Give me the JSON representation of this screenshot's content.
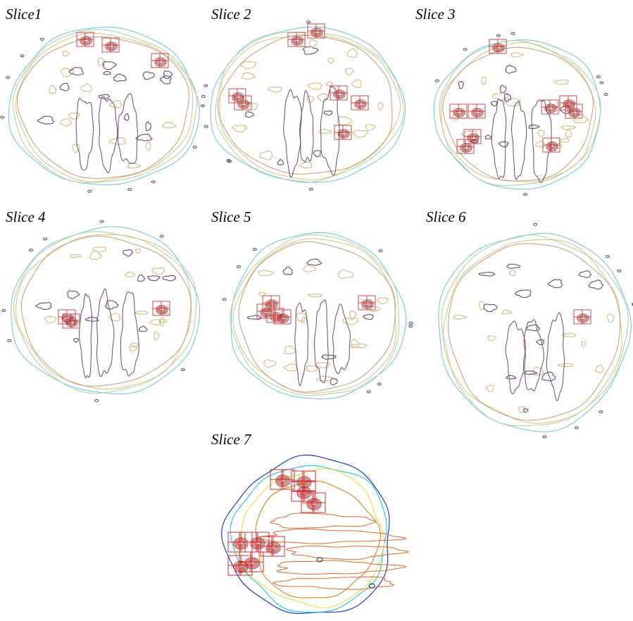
{
  "labels": [
    "Slice1",
    "Slice 2",
    "Slice 3",
    "Slice 4",
    "Slice 5",
    "Slice 6",
    "Slice 7"
  ]
}
